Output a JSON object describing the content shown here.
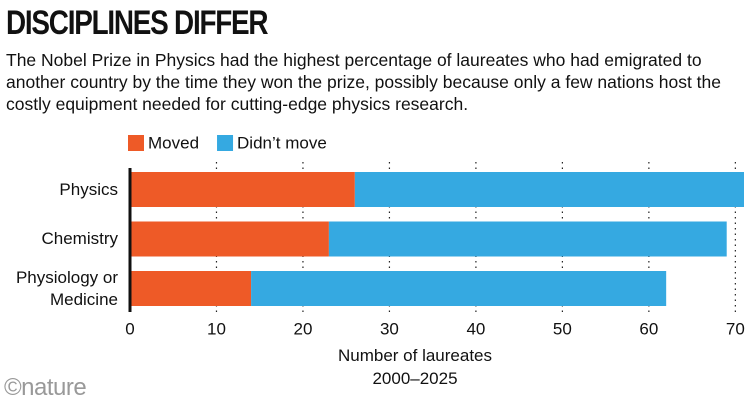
{
  "chart_data": {
    "type": "stacked-barh",
    "title": "DISCIPLINES DIFFER",
    "subtitle": "The Nobel Prize in Physics had the highest percentage of laureates who had emigrated to another country by the time they won the prize, possibly because only a few nations host the costly equipment needed for cutting-edge physics research.",
    "categories": [
      "Physics",
      "Chemistry",
      "Physiology or Medicine"
    ],
    "series": [
      {
        "name": "Moved",
        "color": "#ee5a27",
        "values": [
          26,
          23,
          14
        ]
      },
      {
        "name": "Didn’t move",
        "color": "#35a9e1",
        "values": [
          45,
          46,
          48
        ]
      }
    ],
    "xlim": [
      0,
      71
    ],
    "xticks": [
      0,
      10,
      20,
      30,
      40,
      50,
      60,
      70
    ],
    "xlabel": "Number of laureates 2000–2025",
    "grid": true,
    "legend": "top-left",
    "source": "©nature"
  }
}
